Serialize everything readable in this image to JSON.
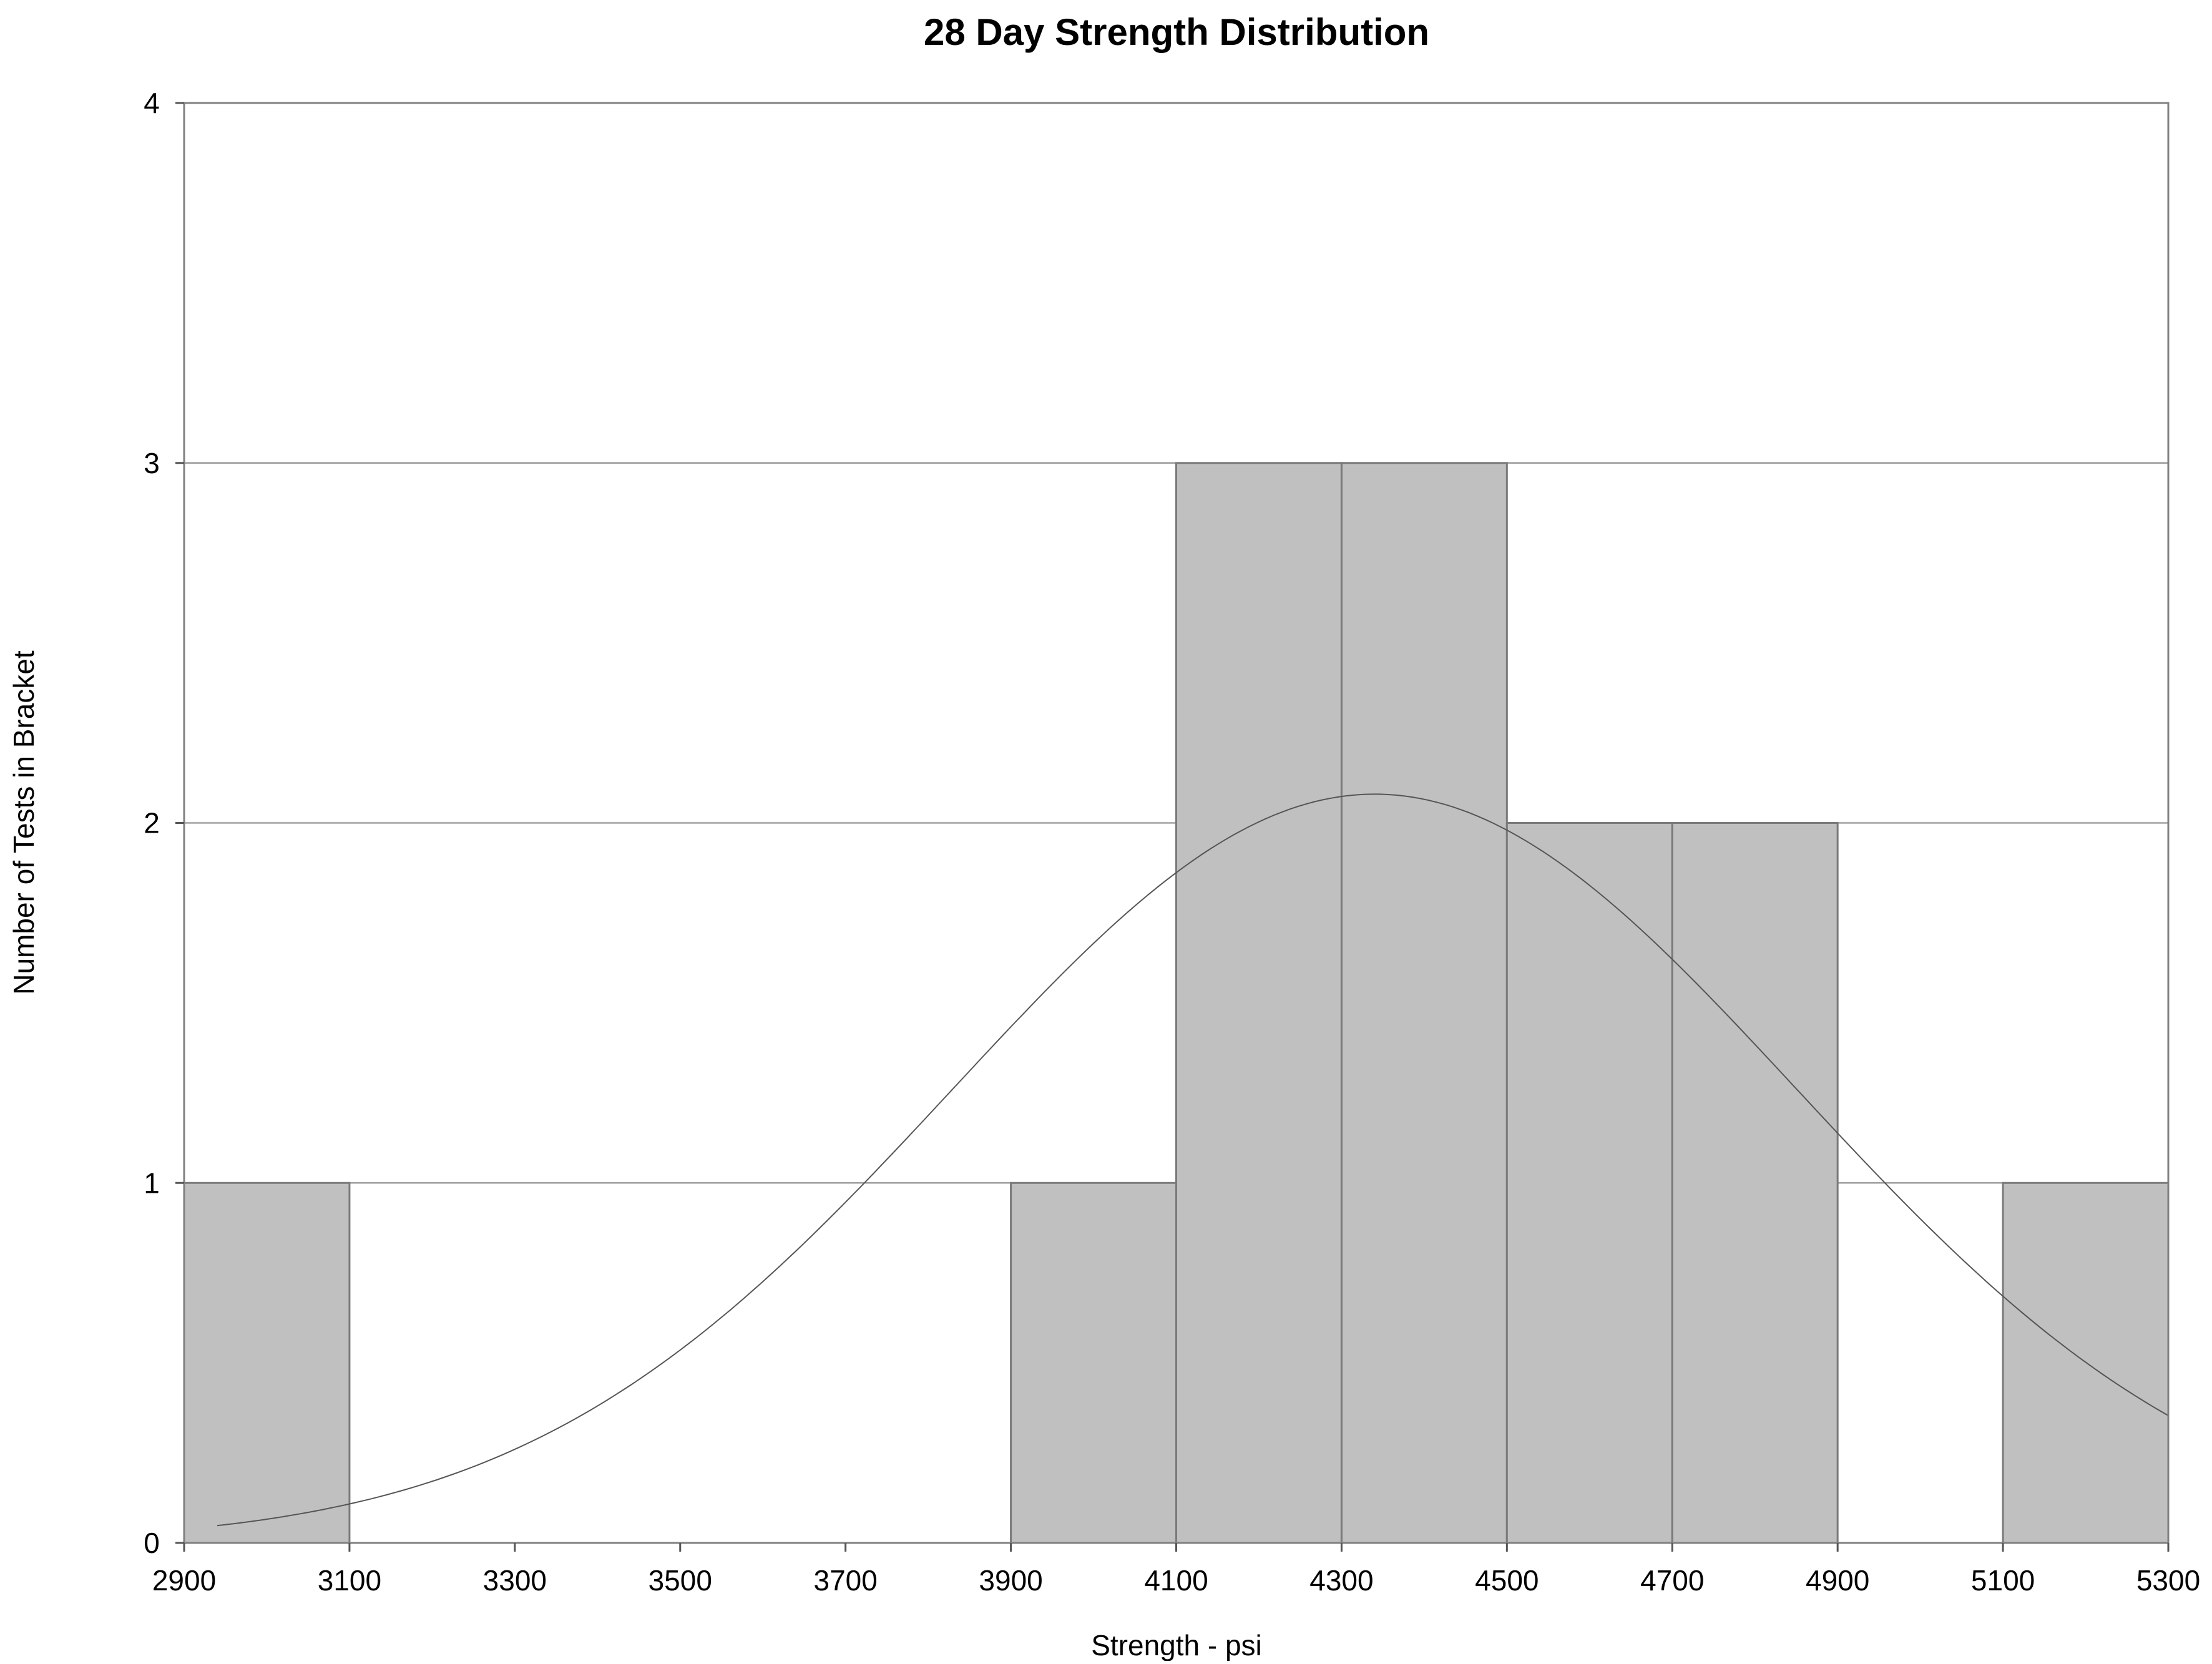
{
  "chart_data": {
    "type": "bar",
    "title": "28 Day Strength Distribution",
    "xlabel": "Strength - psi",
    "ylabel": "Number of Tests in Bracket",
    "x_ticks": [
      "2900",
      "3100",
      "3300",
      "3500",
      "3700",
      "3900",
      "4100",
      "4300",
      "4500",
      "4700",
      "4900",
      "5100",
      "5300"
    ],
    "y_ticks": [
      "0",
      "1",
      "2",
      "3",
      "4"
    ],
    "xlim": [
      2900,
      5300
    ],
    "ylim": [
      0,
      4
    ],
    "bin_width": 200,
    "bins": [
      {
        "start": 2900,
        "end": 3100,
        "count": 1
      },
      {
        "start": 3100,
        "end": 3300,
        "count": 0
      },
      {
        "start": 3300,
        "end": 3500,
        "count": 0
      },
      {
        "start": 3500,
        "end": 3700,
        "count": 0
      },
      {
        "start": 3700,
        "end": 3900,
        "count": 0
      },
      {
        "start": 3900,
        "end": 4100,
        "count": 1
      },
      {
        "start": 4100,
        "end": 4300,
        "count": 3
      },
      {
        "start": 4300,
        "end": 4500,
        "count": 3
      },
      {
        "start": 4500,
        "end": 4700,
        "count": 2
      },
      {
        "start": 4700,
        "end": 4900,
        "count": 2
      },
      {
        "start": 4900,
        "end": 5100,
        "count": 0
      },
      {
        "start": 5100,
        "end": 5300,
        "count": 1
      }
    ],
    "normal_curve": {
      "mean": 4340,
      "std_dev": 510,
      "peak": 2.08,
      "x_start": 2940,
      "x_end": 5300
    },
    "grid": "horizontal",
    "colors": {
      "bar_fill": "#c0c0c0",
      "bar_edge": "#7a7a7a",
      "grid": "#808080",
      "curve": "#555555"
    }
  }
}
